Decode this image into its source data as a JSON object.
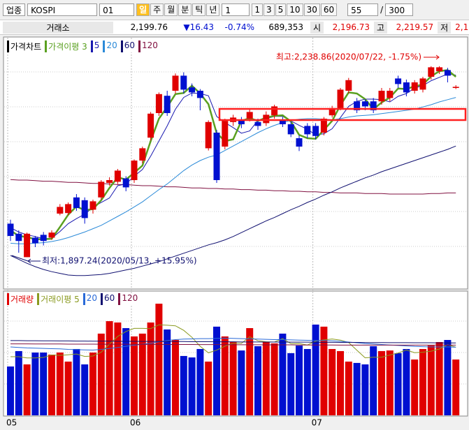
{
  "toolbar": {
    "market": "업종",
    "code": "KOSPI",
    "number": "01",
    "periods": [
      "일",
      "주",
      "월",
      "분",
      "틱",
      "년"
    ],
    "unit": "1",
    "intervals": [
      "1",
      "3",
      "5",
      "10",
      "30",
      "60"
    ],
    "count": "55",
    "separator": "/",
    "total": "300"
  },
  "quote": {
    "exchange": "거래소",
    "price": "2,199.76",
    "change": "▼16.43",
    "change_pct": "-0.74%",
    "volume": "689,353",
    "open_label": "시",
    "open": "2,196.73",
    "high_label": "고",
    "high": "2,219.57",
    "low_label": "저",
    "low": "2,1"
  },
  "chart_data": [
    {
      "type": "candlestick",
      "title": "가격차트",
      "up_color": "#e00000",
      "down_color": "#0010d0",
      "categories": [
        "05",
        null,
        null,
        null,
        null,
        null,
        null,
        null,
        null,
        null,
        null,
        null,
        null,
        null,
        null,
        "06",
        null,
        null,
        null,
        null,
        null,
        null,
        null,
        null,
        null,
        null,
        null,
        null,
        null,
        null,
        null,
        null,
        null,
        null,
        null,
        null,
        null,
        "07",
        null,
        null,
        null,
        null,
        null,
        null,
        null,
        null,
        null,
        null,
        null,
        null,
        null,
        null,
        null,
        null,
        null
      ],
      "open": [
        1957,
        1939,
        1897,
        1932,
        1937,
        1932,
        1975,
        1976,
        2004,
        1999,
        1982,
        2004,
        2030,
        2032,
        2038,
        2035,
        2070,
        2111,
        2155,
        2186,
        2195,
        2222,
        2201,
        2195,
        2092,
        2120,
        2095,
        2139,
        2142,
        2145,
        2139,
        2137,
        2151,
        2142,
        2135,
        2110,
        2132,
        2132,
        2120,
        2151,
        2164,
        2195,
        2176,
        2176,
        2176,
        2176,
        2182,
        2217,
        2210,
        2195,
        2197,
        2220,
        2230,
        2232,
        2200
      ],
      "high": [
        1964,
        1945,
        1941,
        1935,
        1942,
        1945,
        1992,
        1995,
        2010,
        2004,
        2000,
        2035,
        2040,
        2055,
        2042,
        2072,
        2095,
        2157,
        2192,
        2195,
        2226,
        2228,
        2208,
        2198,
        2142,
        2125,
        2145,
        2152,
        2148,
        2162,
        2145,
        2158,
        2170,
        2148,
        2140,
        2115,
        2137,
        2137,
        2148,
        2168,
        2200,
        2218,
        2182,
        2180,
        2182,
        2200,
        2200,
        2222,
        2215,
        2214,
        2220,
        2239,
        2239,
        2236,
        2205
      ],
      "low": [
        1926,
        1905,
        1897,
        1915,
        1918,
        1928,
        1972,
        1972,
        1980,
        1957,
        1975,
        2000,
        2025,
        2028,
        2015,
        2030,
        2065,
        2106,
        2150,
        2150,
        2190,
        2190,
        2185,
        2160,
        2088,
        2030,
        2090,
        2132,
        2128,
        2140,
        2125,
        2132,
        2145,
        2130,
        2112,
        2087,
        2110,
        2108,
        2115,
        2147,
        2160,
        2190,
        2155,
        2160,
        2155,
        2170,
        2176,
        2200,
        2185,
        2190,
        2192,
        2215,
        2225,
        2210,
        2198
      ],
      "close": [
        1935,
        1926,
        1939,
        1922,
        1926,
        1941,
        1987,
        1992,
        1985,
        1967,
        1997,
        2032,
        2035,
        2052,
        2022,
        2070,
        2092,
        2154,
        2189,
        2155,
        2222,
        2197,
        2192,
        2182,
        2139,
        2035,
        2141,
        2147,
        2135,
        2157,
        2132,
        2152,
        2167,
        2135,
        2117,
        2095,
        2117,
        2114,
        2145,
        2164,
        2197,
        2214,
        2160,
        2167,
        2160,
        2195,
        2195,
        2207,
        2192,
        2210,
        2217,
        2237,
        2237,
        2222,
        2202
      ],
      "series": [
        {
          "name": "가격이평 3",
          "color": "#5aa020",
          "values": [
            1945,
            1935,
            1933,
            1929,
            1929,
            1930,
            1951,
            1973,
            1988,
            1981,
            1983,
            1999,
            2021,
            2040,
            2036,
            2048,
            2061,
            2105,
            2145,
            2166,
            2189,
            2191,
            2204,
            2190,
            2171,
            2119,
            2105,
            2108,
            2141,
            2146,
            2141,
            2147,
            2150,
            2151,
            2140,
            2116,
            2110,
            2109,
            2125,
            2141,
            2169,
            2192,
            2190,
            2180,
            2162,
            2174,
            2183,
            2199,
            2198,
            2203,
            2206,
            2221,
            2230,
            2232,
            2220
          ]
        },
        {
          "name": "5",
          "color": "#1a1ab0",
          "values": [
            1950,
            1942,
            1937,
            1934,
            1930,
            1931,
            1943,
            1957,
            1966,
            1974,
            1986,
            1995,
            2003,
            2025,
            2028,
            2042,
            2054,
            2078,
            2105,
            2132,
            2162,
            2183,
            2191,
            2190,
            2186,
            2149,
            2138,
            2129,
            2119,
            2123,
            2142,
            2145,
            2149,
            2149,
            2141,
            2133,
            2126,
            2116,
            2118,
            2127,
            2147,
            2167,
            2176,
            2180,
            2180,
            2179,
            2175,
            2185,
            2190,
            2200,
            2204,
            2213,
            2219,
            2225,
            2223
          ]
        },
        {
          "name": "20",
          "color": "#2a8ad8",
          "values": [
            1922,
            1921,
            1921,
            1922,
            1923,
            1925,
            1928,
            1932,
            1937,
            1942,
            1948,
            1954,
            1962,
            1970,
            1978,
            1987,
            1996,
            2007,
            2018,
            2028,
            2040,
            2052,
            2062,
            2070,
            2076,
            2080,
            2088,
            2096,
            2104,
            2112,
            2120,
            2127,
            2133,
            2138,
            2142,
            2144,
            2145,
            2145,
            2144,
            2143,
            2145,
            2148,
            2150,
            2151,
            2152,
            2154,
            2156,
            2158,
            2160,
            2162,
            2166,
            2170,
            2175,
            2179,
            2183
          ]
        },
        {
          "name": "60",
          "color": "#101070",
          "values": [
            1900,
            1893,
            1886,
            1880,
            1875,
            1871,
            1868,
            1865,
            1864,
            1864,
            1865,
            1866,
            1868,
            1871,
            1874,
            1877,
            1881,
            1885,
            1889,
            1894,
            1899,
            1904,
            1909,
            1914,
            1919,
            1923,
            1928,
            1934,
            1941,
            1948,
            1955,
            1962,
            1968,
            1975,
            1982,
            1988,
            1995,
            2001,
            2008,
            2014,
            2021,
            2027,
            2033,
            2039,
            2044,
            2050,
            2055,
            2060,
            2065,
            2070,
            2075,
            2080,
            2085,
            2090,
            2096
          ]
        },
        {
          "name": "120",
          "color": "#801040",
          "values": [
            2036,
            2035,
            2035,
            2034,
            2033,
            2033,
            2032,
            2031,
            2031,
            2030,
            2029,
            2029,
            2028,
            2027,
            2027,
            2026,
            2025,
            2025,
            2024,
            2023,
            2023,
            2022,
            2021,
            2021,
            2020,
            2020,
            2019,
            2019,
            2018,
            2018,
            2017,
            2017,
            2016,
            2016,
            2015,
            2015,
            2014,
            2014,
            2013,
            2013,
            2012,
            2012,
            2012,
            2011,
            2011,
            2011,
            2010,
            2010,
            2010,
            2010,
            2010,
            2011,
            2011,
            2012,
            2012
          ]
        }
      ],
      "ylim": [
        1860,
        2280
      ],
      "annotations": {
        "high": "최고:2,238.86(2020/07/22, -1.75%)",
        "low": "최저:1,897.24(2020/05/13, +15.95%)"
      }
    },
    {
      "type": "bar",
      "title": "거래량",
      "values": [
        400,
        526,
        417,
        514,
        514,
        497,
        514,
        440,
        543,
        417,
        514,
        669,
        771,
        760,
        714,
        646,
        669,
        760,
        914,
        703,
        617,
        486,
        474,
        543,
        440,
        726,
        646,
        600,
        531,
        714,
        566,
        600,
        589,
        669,
        509,
        571,
        543,
        743,
        726,
        543,
        526,
        440,
        429,
        417,
        566,
        526,
        531,
        509,
        543,
        457,
        543,
        571,
        600,
        617,
        457
      ],
      "series": [
        {
          "name": "거래이평 5",
          "color": "#8a9a20",
          "values": [
            480,
            480,
            470,
            470,
            474,
            494,
            491,
            496,
            502,
            482,
            486,
            517,
            583,
            646,
            686,
            712,
            712,
            710,
            741,
            738,
            733,
            696,
            639,
            565,
            512,
            534,
            566,
            591,
            589,
            643,
            611,
            602,
            600,
            628,
            587,
            588,
            576,
            607,
            618,
            625,
            616,
            596,
            533,
            471,
            476,
            476,
            494,
            510,
            535,
            513,
            517,
            525,
            543,
            578,
            558
          ]
        },
        {
          "name": "20",
          "color": "#2a6ad8",
          "values": [
            560,
            556,
            552,
            550,
            548,
            546,
            544,
            540,
            538,
            536,
            534,
            540,
            548,
            556,
            565,
            574,
            582,
            590,
            602,
            612,
            620,
            624,
            626,
            628,
            628,
            630,
            632,
            630,
            628,
            626,
            624,
            622,
            620,
            620,
            618,
            616,
            614,
            612,
            612,
            610,
            606,
            600,
            594,
            588,
            584,
            580,
            576,
            572,
            568,
            564,
            562,
            560,
            560,
            560,
            558
          ]
        },
        {
          "name": "60",
          "color": "#101070",
          "values": [
            612,
            612,
            611,
            611,
            610,
            610,
            609,
            609,
            608,
            608,
            607,
            607,
            607,
            606,
            606,
            606,
            605,
            605,
            605,
            604,
            604,
            604,
            603,
            603,
            603,
            602,
            602,
            602,
            601,
            601,
            601,
            600,
            600,
            600,
            599,
            599,
            599,
            598,
            598,
            598,
            597,
            597,
            597,
            596,
            596,
            596,
            595,
            595,
            595,
            594,
            594,
            594,
            593,
            593,
            593
          ]
        },
        {
          "name": "120",
          "color": "#801040",
          "values": [
            585,
            585,
            585,
            584,
            584,
            584,
            584,
            583,
            583,
            583,
            583,
            582,
            582,
            582,
            582,
            581,
            581,
            581,
            581,
            580,
            580,
            580,
            580,
            579,
            579,
            579,
            579,
            578,
            578,
            578,
            578,
            577,
            577,
            577,
            577,
            576,
            576,
            576,
            576,
            576,
            575,
            575,
            575,
            575,
            575,
            575,
            575,
            575,
            575,
            575,
            575,
            575,
            575,
            575,
            575
          ]
        }
      ],
      "ylim": [
        0,
        1000
      ]
    }
  ]
}
